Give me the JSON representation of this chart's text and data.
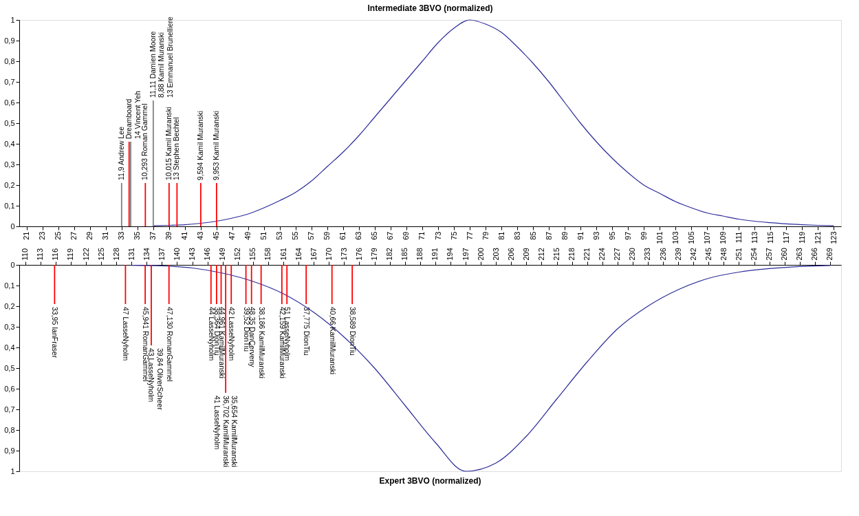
{
  "chart_data": [
    {
      "type": "line",
      "title": "Intermediate 3BVO (normalized)",
      "xlim": [
        20.5,
        123.5
      ],
      "xticks": [
        21,
        23,
        25,
        27,
        29,
        31,
        33,
        35,
        37,
        39,
        41,
        43,
        45,
        47,
        49,
        51,
        53,
        55,
        57,
        59,
        61,
        63,
        65,
        67,
        69,
        71,
        73,
        75,
        77,
        79,
        81,
        83,
        85,
        87,
        89,
        91,
        93,
        95,
        97,
        99,
        101,
        103,
        105,
        107,
        109,
        111,
        113,
        115,
        117,
        119,
        121,
        123
      ],
      "ylim": [
        0,
        1
      ],
      "yticks": [
        {
          "value": 0,
          "label": "0"
        },
        {
          "value": 0.1,
          "label": "0,1"
        },
        {
          "value": 0.2,
          "label": "0,2"
        },
        {
          "value": 0.3,
          "label": "0,3"
        },
        {
          "value": 0.4,
          "label": "0,4"
        },
        {
          "value": 0.5,
          "label": "0,5"
        },
        {
          "value": 0.6,
          "label": "0,6"
        },
        {
          "value": 0.7,
          "label": "0,7"
        },
        {
          "value": 0.8,
          "label": "0,8"
        },
        {
          "value": 0.9,
          "label": "0,9"
        },
        {
          "value": 1,
          "label": "1"
        }
      ],
      "grid": false,
      "legend": false,
      "series": [
        {
          "type": "line",
          "color": "#2b2b99",
          "x": [
            37,
            39,
            41,
            43,
            45,
            47,
            49,
            51,
            53,
            55,
            57,
            59,
            61,
            63,
            65,
            67,
            69,
            71,
            73,
            75,
            77,
            79,
            81,
            83,
            85,
            87,
            89,
            91,
            93,
            95,
            97,
            99,
            101,
            103,
            105,
            107,
            109,
            111,
            113,
            115,
            117,
            119,
            121,
            123
          ],
          "values": [
            0.003,
            0.005,
            0.008,
            0.015,
            0.025,
            0.04,
            0.06,
            0.09,
            0.125,
            0.165,
            0.22,
            0.29,
            0.36,
            0.44,
            0.53,
            0.62,
            0.71,
            0.8,
            0.89,
            0.96,
            1.0,
            0.98,
            0.94,
            0.87,
            0.79,
            0.7,
            0.6,
            0.5,
            0.41,
            0.33,
            0.26,
            0.2,
            0.16,
            0.12,
            0.09,
            0.065,
            0.05,
            0.035,
            0.025,
            0.018,
            0.012,
            0.008,
            0.005,
            0.003
          ]
        },
        {
          "type": "bar",
          "x": [
            33,
            33.95,
            34.15,
            36,
            37,
            39,
            40,
            43,
            45
          ],
          "values": [
            0.21,
            0.41,
            0.41,
            0.21,
            0.61,
            0.21,
            0.21,
            0.21,
            0.21
          ],
          "colors": [
            "#808080",
            "#ff0000",
            "#808080",
            "#ff0000",
            "#808080",
            "#ff0000",
            "#ff0000",
            "#ff0000",
            "#ff0000"
          ]
        }
      ],
      "annotations": [
        {
          "text": "11,9   Andrew Lee",
          "x": 33,
          "y": 0.21
        },
        {
          "text": "Dreamboard\n14   Vincent Yeh",
          "x": 34,
          "y": 0.41
        },
        {
          "text": "10,293  Roman Gammel",
          "x": 36,
          "y": 0.21
        },
        {
          "text": "11,11 Damien Moore\n8,88  Kamil Muranski\n13 Emmanuel Brunelliere",
          "x": 37,
          "y": 0.61
        },
        {
          "text": "10,015  Kamil Muranski",
          "x": 39,
          "y": 0.21
        },
        {
          "text": "13   Stephen Bechtel",
          "x": 40,
          "y": 0.21
        },
        {
          "text": "9,594 Kamil Muranski",
          "x": 43,
          "y": 0.21
        },
        {
          "text": "9,953  Kamil Muranski",
          "x": 45,
          "y": 0.21
        }
      ]
    },
    {
      "type": "line",
      "title": "Expert 3BVO (normalized)",
      "xlim": [
        109.5,
        270.5
      ],
      "xticks": [
        110,
        113,
        116,
        119,
        122,
        125,
        128,
        131,
        134,
        137,
        140,
        143,
        146,
        149,
        152,
        155,
        158,
        161,
        164,
        167,
        170,
        173,
        176,
        179,
        182,
        185,
        188,
        191,
        194,
        197,
        200,
        203,
        206,
        209,
        212,
        215,
        218,
        221,
        224,
        227,
        230,
        233,
        236,
        239,
        242,
        245,
        248,
        251,
        254,
        257,
        260,
        263,
        266,
        269
      ],
      "ylim": [
        1,
        0
      ],
      "yticks": [
        {
          "value": 0,
          "label": "0"
        },
        {
          "value": 0.1,
          "label": "0,1"
        },
        {
          "value": 0.2,
          "label": "0,2"
        },
        {
          "value": 0.3,
          "label": "0,3"
        },
        {
          "value": 0.4,
          "label": "0,4"
        },
        {
          "value": 0.5,
          "label": "0,5"
        },
        {
          "value": 0.6,
          "label": "0,6"
        },
        {
          "value": 0.7,
          "label": "0,7"
        },
        {
          "value": 0.8,
          "label": "0,8"
        },
        {
          "value": 0.9,
          "label": "0,9"
        },
        {
          "value": 1,
          "label": "1"
        }
      ],
      "grid": false,
      "legend": false,
      "series": [
        {
          "type": "line",
          "color": "#2b2b99",
          "x": [
            131,
            137,
            143,
            149,
            155,
            161,
            167,
            173,
            179,
            185,
            191,
            197,
            203,
            209,
            215,
            221,
            227,
            233,
            239,
            245,
            251,
            257,
            263,
            269
          ],
          "values": [
            0.002,
            0.005,
            0.015,
            0.04,
            0.08,
            0.14,
            0.23,
            0.35,
            0.5,
            0.68,
            0.86,
            1.0,
            0.96,
            0.83,
            0.65,
            0.47,
            0.31,
            0.2,
            0.12,
            0.065,
            0.035,
            0.018,
            0.008,
            0.003
          ]
        },
        {
          "type": "bar",
          "x": [
            115.8,
            129.8,
            133.7,
            134.9,
            138.4,
            146.7,
            147.8,
            148.7,
            149.6,
            150.7,
            153.6,
            154.7,
            156.6,
            160.7,
            161.7,
            165.5,
            170.6,
            174.6
          ],
          "values": [
            0.19,
            0.19,
            0.19,
            0.39,
            0.19,
            0.19,
            0.19,
            0.19,
            0.62,
            0.19,
            0.19,
            0.19,
            0.19,
            0.19,
            0.19,
            0.19,
            0.19,
            0.19
          ],
          "colors": [
            "#ff0000",
            "#ff0000",
            "#ff0000",
            "#ff0000",
            "#ff0000",
            "#ff0000",
            "#ff0000",
            "#ff0000",
            "#ff0000",
            "#ff0000",
            "#ff0000",
            "#ff0000",
            "#ff0000",
            "#ff0000",
            "#ff0000",
            "#ff0000",
            "#ff0000",
            "#ff0000"
          ]
        }
      ],
      "annotations": [
        {
          "text": "33,95     IanFraser",
          "x": 115.8,
          "y": 0.19
        },
        {
          "text": "47     LasseNyholm",
          "x": 129.8,
          "y": 0.19
        },
        {
          "text": "45,941  RomanGammel",
          "x": 133.7,
          "y": 0.19
        },
        {
          "text": "39,84   OliverScheer\n43     LasseNyholm",
          "x": 134.9,
          "y": 0.39
        },
        {
          "text": "47,130  RomanGammel",
          "x": 138.4,
          "y": 0.19
        },
        {
          "text": "44     LasseNyholm",
          "x": 146.7,
          "y": 0.19
        },
        {
          "text": "38,364 DionTiu",
          "x": 147.8,
          "y": 0.19
        },
        {
          "text": "44,961 KamilMuranski",
          "x": 148.7,
          "y": 0.19
        },
        {
          "text": "35,654  KamilMuranski\n36,702 KamilMuranski\n41     LasseNyholm",
          "x": 149.6,
          "y": 0.62
        },
        {
          "text": "42     LasseNyholm",
          "x": 150.7,
          "y": 0.19
        },
        {
          "text": "39,52  DionTiu",
          "x": 153.6,
          "y": 0.19
        },
        {
          "text": "48,35  DanCerveny",
          "x": 154.7,
          "y": 0.19
        },
        {
          "text": "38,186 KamilMuranski",
          "x": 156.6,
          "y": 0.19
        },
        {
          "text": "42,159 KamilMuranski",
          "x": 160.7,
          "y": 0.19
        },
        {
          "text": "51     LasseNyholm",
          "x": 161.7,
          "y": 0.19
        },
        {
          "text": "37,775  DionTiu",
          "x": 165.5,
          "y": 0.19
        },
        {
          "text": "40,66  KamilMuranski",
          "x": 170.6,
          "y": 0.19
        },
        {
          "text": "38,589  DionTiu",
          "x": 174.6,
          "y": 0.19
        }
      ]
    }
  ]
}
